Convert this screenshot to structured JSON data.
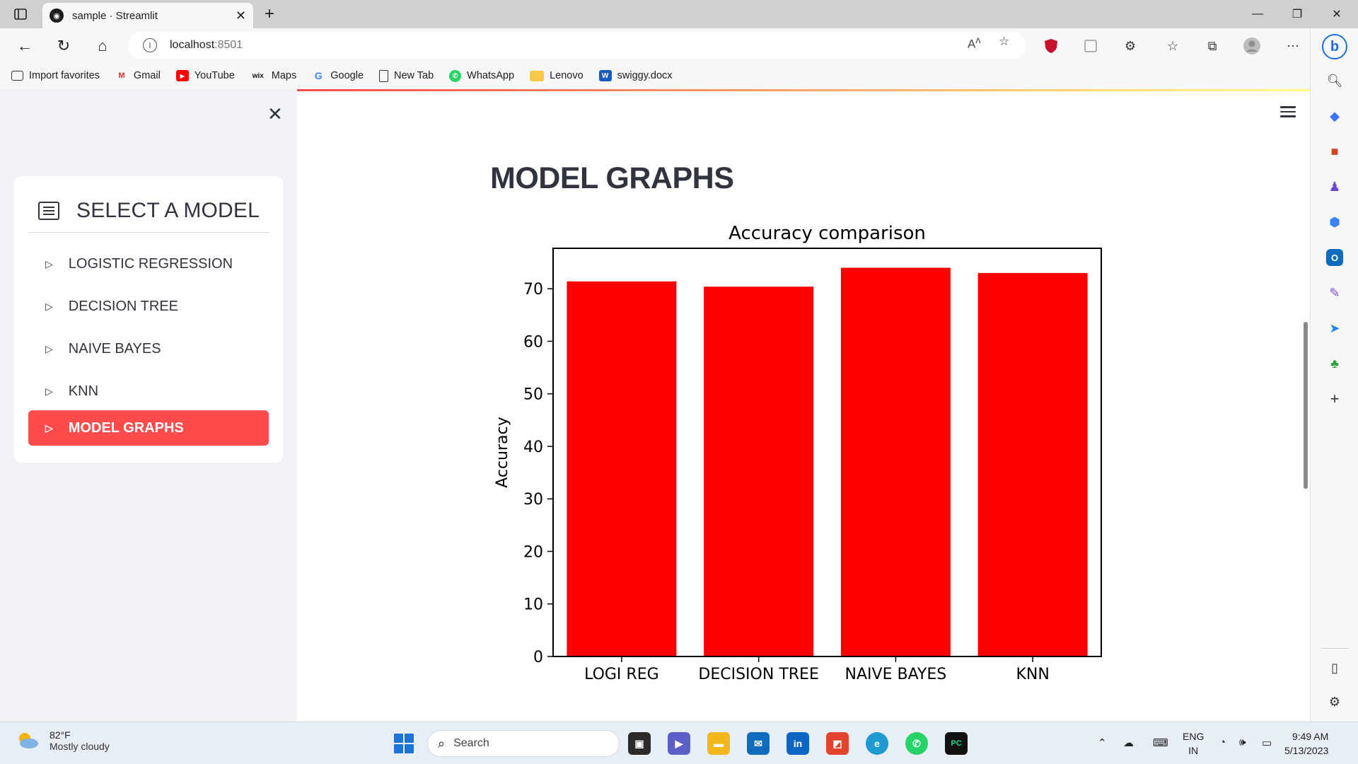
{
  "browser": {
    "tab_title": "sample · Streamlit",
    "url_host": "localhost",
    "url_port": ":8501",
    "bookmarks": [
      {
        "label": "Import favorites",
        "icon": "import-icon"
      },
      {
        "label": "Gmail",
        "icon": "gmail-icon"
      },
      {
        "label": "YouTube",
        "icon": "youtube-icon"
      },
      {
        "label": "Maps",
        "icon": "wix-icon"
      },
      {
        "label": "Google",
        "icon": "google-icon"
      },
      {
        "label": "New Tab",
        "icon": "page-icon"
      },
      {
        "label": "WhatsApp",
        "icon": "whatsapp-icon"
      },
      {
        "label": "Lenovo",
        "icon": "folder-icon"
      },
      {
        "label": "swiggy.docx",
        "icon": "word-icon"
      }
    ]
  },
  "sidebar": {
    "menu_title": "SELECT A MODEL",
    "items": [
      {
        "label": "LOGISTIC REGRESSION",
        "active": false
      },
      {
        "label": "DECISION TREE",
        "active": false
      },
      {
        "label": "NAIVE BAYES",
        "active": false
      },
      {
        "label": "KNN",
        "active": false
      },
      {
        "label": "MODEL GRAPHS",
        "active": true
      }
    ],
    "accent_color": "#ff4b4b"
  },
  "main": {
    "page_title": "MODEL GRAPHS"
  },
  "chart_data": {
    "type": "bar",
    "title": "Accuracy comparison",
    "xlabel": "",
    "ylabel": "Accuracy",
    "categories": [
      "LOGI REG",
      "DECISION TREE",
      "NAIVE BAYES",
      "KNN"
    ],
    "values": [
      71.4,
      70.4,
      74.0,
      73.0
    ],
    "ylim": [
      0,
      77.7
    ],
    "yticks": [
      0,
      10,
      20,
      30,
      40,
      50,
      60,
      70
    ],
    "bar_color": "#ff0000",
    "grid": false
  },
  "taskbar": {
    "weather_temp": "82°F",
    "weather_desc": "Mostly cloudy",
    "search_label": "Search",
    "lang_top": "ENG",
    "lang_bottom": "IN",
    "time": "9:49 AM",
    "date": "5/13/2023"
  }
}
